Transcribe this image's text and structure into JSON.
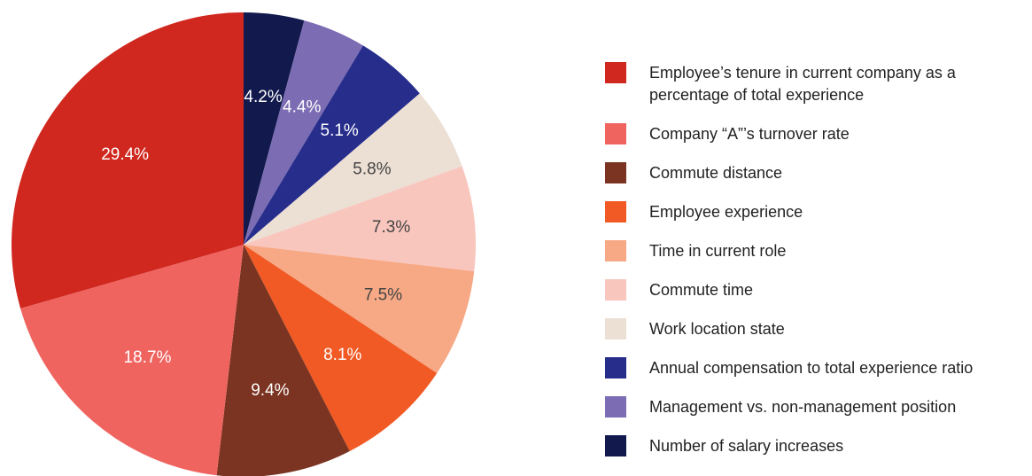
{
  "chart_data": {
    "type": "pie",
    "categories": [
      "Employee’s tenure in current company as a percentage of total experience",
      "Company “A”’s turnover rate",
      "Commute distance",
      "Employee experience",
      "Time in current role",
      "Commute time",
      "Work location state",
      "Annual compensation to total experience ratio",
      "Management vs. non-management position",
      "Number of salary increases"
    ],
    "values": [
      29.4,
      18.7,
      9.4,
      8.1,
      7.5,
      7.3,
      5.8,
      5.1,
      4.4,
      4.2
    ],
    "value_labels": [
      "29.4%",
      "18.7%",
      "9.4%",
      "8.1%",
      "7.5%",
      "7.3%",
      "5.8%",
      "5.1%",
      "4.4%",
      "4.2%"
    ],
    "colors": [
      "#d0281f",
      "#f06460",
      "#7b3421",
      "#f15a24",
      "#f7a986",
      "#f9c6be",
      "#ecdfd4",
      "#262d8b",
      "#7b6cb3",
      "#121a4d"
    ],
    "label_colors": [
      "#ffffff",
      "#ffffff",
      "#ffffff",
      "#ffffff",
      "#444444",
      "#444444",
      "#444444",
      "#ffffff",
      "#ffffff",
      "#ffffff"
    ],
    "legend": "right"
  }
}
